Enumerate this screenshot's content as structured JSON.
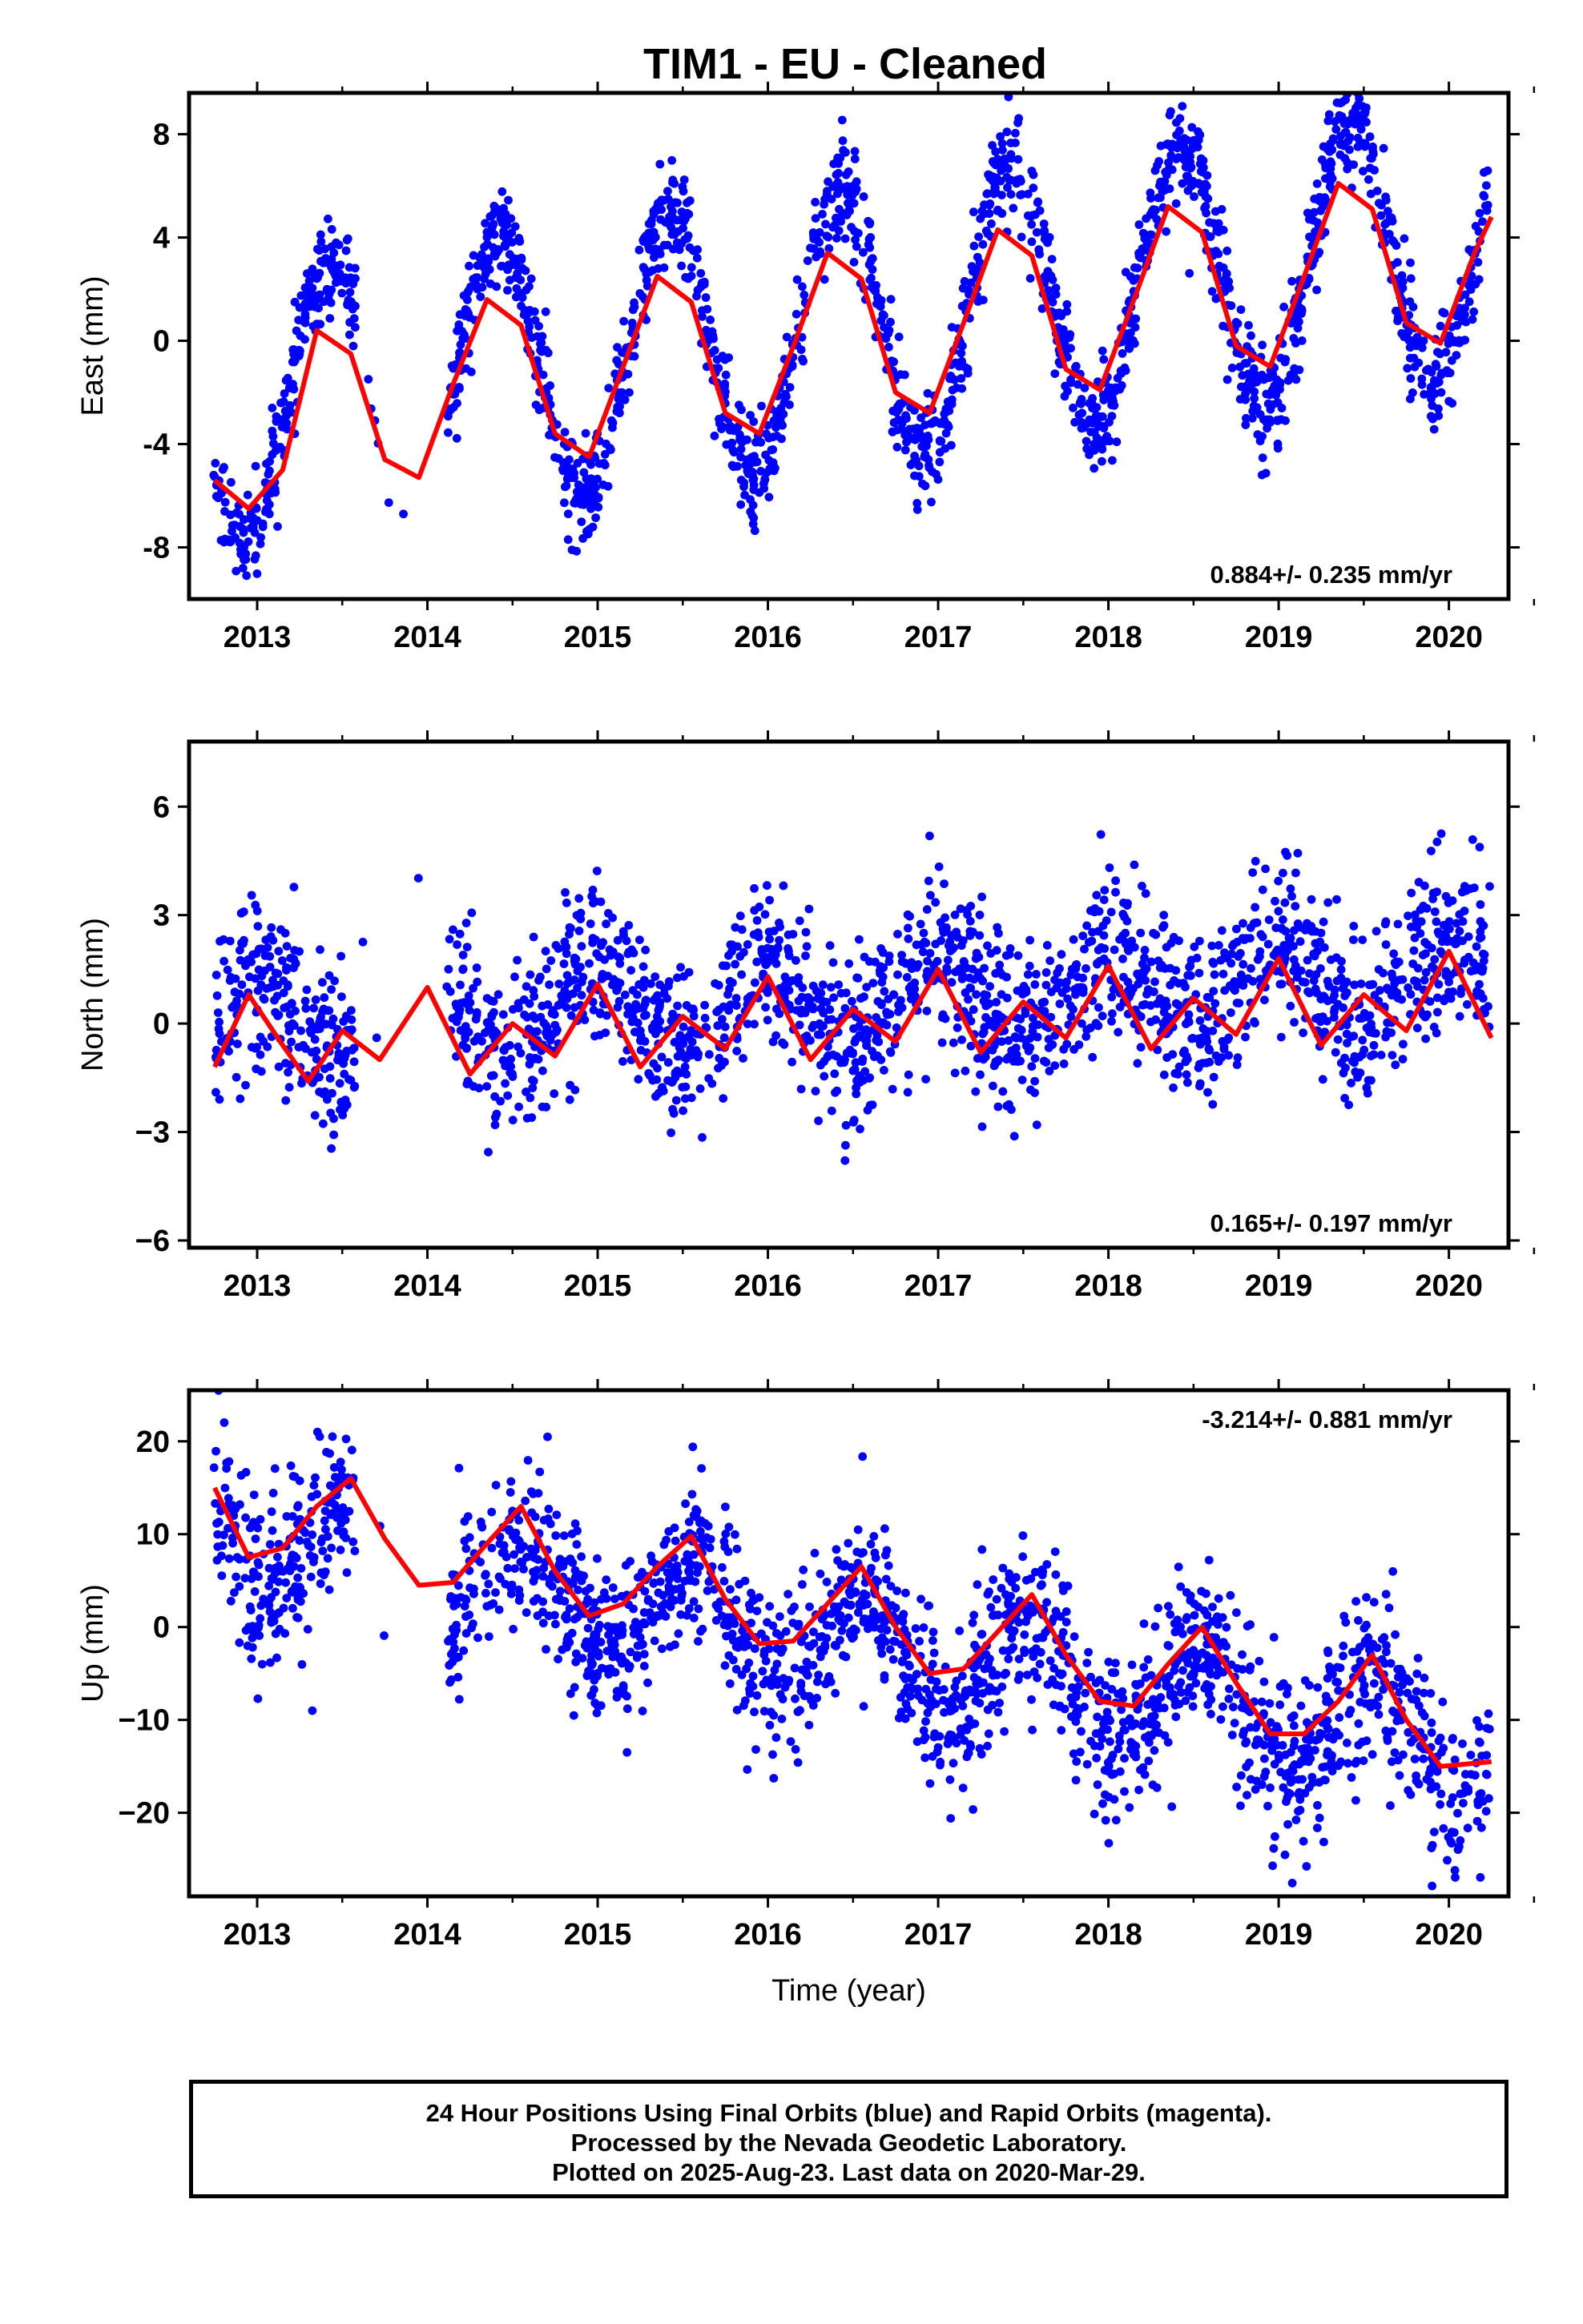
{
  "title": "TIM1  - EU - Cleaned",
  "xlabel": "Time (year)",
  "x_tick_labels": [
    "2013",
    "2014",
    "2015",
    "2016",
    "2017",
    "2018",
    "2019",
    "2020"
  ],
  "footer": {
    "line1": "24 Hour Positions Using Final Orbits (blue) and Rapid Orbits (magenta).",
    "line2": "Processed by the Nevada Geodetic Laboratory.",
    "line3": "Plotted on 2025-Aug-23. Last data on 2020-Mar-29."
  },
  "colors": {
    "points": "#0000ff",
    "fit": "#ff0000",
    "axes": "#000000"
  },
  "chart_data": [
    {
      "type": "scatter",
      "ylabel": "East (mm)",
      "xlim": [
        2012.6,
        2020.35
      ],
      "ylim": [
        -10.0,
        9.6
      ],
      "yticks": [
        -8,
        -4,
        0,
        4,
        8
      ],
      "ytick_labels": [
        "-8",
        "-4",
        "0",
        "4",
        "8"
      ],
      "rate_label": "0.884+/- 0.235 mm/yr",
      "rate_position": "bottom-right",
      "data_range": [
        2012.74,
        2020.24
      ],
      "gap": [
        2013.58,
        2014.12
      ],
      "fit_curve": {
        "name": "fit",
        "x": [
          2012.75,
          2012.95,
          2013.15,
          2013.35,
          2013.55,
          2013.75,
          2013.95,
          2014.15,
          2014.35,
          2014.55,
          2014.75,
          2014.95,
          2015.15,
          2015.35,
          2015.55,
          2015.75,
          2015.95,
          2016.15,
          2016.35,
          2016.55,
          2016.75,
          2016.95,
          2017.15,
          2017.35,
          2017.55,
          2017.75,
          2017.95,
          2018.15,
          2018.35,
          2018.55,
          2018.75,
          2018.95,
          2019.15,
          2019.35,
          2019.55,
          2019.75,
          2019.95,
          2020.15,
          2020.25
        ],
        "y": [
          -5.4,
          -6.5,
          -5.0,
          0.4,
          -0.5,
          -4.6,
          -5.3,
          -1.7,
          1.6,
          0.6,
          -3.6,
          -4.5,
          -1.0,
          2.5,
          1.5,
          -2.8,
          -3.6,
          -0.2,
          3.4,
          2.4,
          -2.0,
          -2.8,
          0.7,
          4.3,
          3.3,
          -1.1,
          -1.9,
          1.6,
          5.2,
          4.2,
          -0.2,
          -1.0,
          2.5,
          6.1,
          5.1,
          0.7,
          -0.1,
          3.4,
          4.8
        ]
      },
      "points": {
        "name": "daily positions",
        "amplitude": 5.2,
        "phase": 2013.42,
        "offset": -2.7,
        "trend": 0.884,
        "noise_sd": 1.0,
        "n": 2150
      }
    },
    {
      "type": "scatter",
      "ylabel": "North (mm)",
      "xlim": [
        2012.6,
        2020.35
      ],
      "ylim": [
        -6.2,
        7.8
      ],
      "yticks": [
        -6,
        -3,
        0,
        3,
        6
      ],
      "ytick_labels": [
        "−6",
        "−3",
        "0",
        "3",
        "6"
      ],
      "rate_label": "0.165+/- 0.197 mm/yr",
      "rate_position": "bottom-right",
      "data_range": [
        2012.74,
        2020.24
      ],
      "gap": [
        2013.58,
        2014.12
      ],
      "fit_curve": {
        "name": "fit",
        "x": [
          2012.75,
          2012.95,
          2013.15,
          2013.3,
          2013.5,
          2013.72,
          2014.0,
          2014.25,
          2014.5,
          2014.75,
          2015.0,
          2015.25,
          2015.5,
          2015.75,
          2016.0,
          2016.25,
          2016.5,
          2016.75,
          2017.0,
          2017.25,
          2017.5,
          2017.75,
          2018.0,
          2018.25,
          2018.5,
          2018.75,
          2019.0,
          2019.25,
          2019.5,
          2019.75,
          2020.0,
          2020.25
        ],
        "y": [
          -1.2,
          0.8,
          -0.6,
          -1.6,
          -0.2,
          -1.0,
          1.0,
          -1.4,
          0.0,
          -0.9,
          1.1,
          -1.2,
          0.2,
          -0.7,
          1.3,
          -1.0,
          0.4,
          -0.5,
          1.5,
          -0.8,
          0.6,
          -0.4,
          1.6,
          -0.7,
          0.7,
          -0.3,
          1.8,
          -0.6,
          0.8,
          -0.2,
          2.0,
          -0.4
        ]
      },
      "points": {
        "name": "daily positions",
        "amplitude": 1.1,
        "phase": 2013.0,
        "offset": 0.0,
        "trend": 0.165,
        "noise_sd": 1.15,
        "n": 2150
      }
    },
    {
      "type": "scatter",
      "ylabel": "Up (mm)",
      "xlim": [
        2012.6,
        2020.35
      ],
      "ylim": [
        -29.0,
        25.5
      ],
      "yticks": [
        -20,
        -10,
        0,
        10,
        20
      ],
      "ytick_labels": [
        "−20",
        "−10",
        "0",
        "10",
        "20"
      ],
      "rate_label": "-3.214+/- 0.881 mm/yr",
      "rate_position": "top-right",
      "data_range": [
        2012.74,
        2020.24
      ],
      "gap": [
        2013.58,
        2014.12
      ],
      "fit_curve": {
        "name": "fit",
        "x": [
          2012.75,
          2012.95,
          2013.15,
          2013.35,
          2013.55,
          2013.75,
          2013.95,
          2014.15,
          2014.35,
          2014.55,
          2014.75,
          2014.95,
          2015.15,
          2015.35,
          2015.55,
          2015.75,
          2015.95,
          2016.15,
          2016.35,
          2016.55,
          2016.75,
          2016.95,
          2017.15,
          2017.35,
          2017.55,
          2017.75,
          2017.95,
          2018.15,
          2018.35,
          2018.55,
          2018.75,
          2018.95,
          2019.15,
          2019.35,
          2019.55,
          2019.75,
          2019.95,
          2020.25
        ],
        "y": [
          15.0,
          7.5,
          8.5,
          13.0,
          16.0,
          9.5,
          4.5,
          4.8,
          9.0,
          13.0,
          6.0,
          1.2,
          2.5,
          6.5,
          9.8,
          3.0,
          -1.8,
          -1.5,
          2.5,
          6.5,
          0.0,
          -5.0,
          -4.5,
          -0.5,
          3.5,
          -3.0,
          -8.0,
          -8.5,
          -4.0,
          0.0,
          -6.0,
          -11.5,
          -11.5,
          -8.0,
          -3.0,
          -10.0,
          -15.0,
          -14.5
        ]
      },
      "points": {
        "name": "daily positions",
        "amplitude": 5.5,
        "phase": 2013.55,
        "offset": 10.5,
        "trend": -3.214,
        "noise_sd": 4.5,
        "n": 2150
      }
    }
  ]
}
